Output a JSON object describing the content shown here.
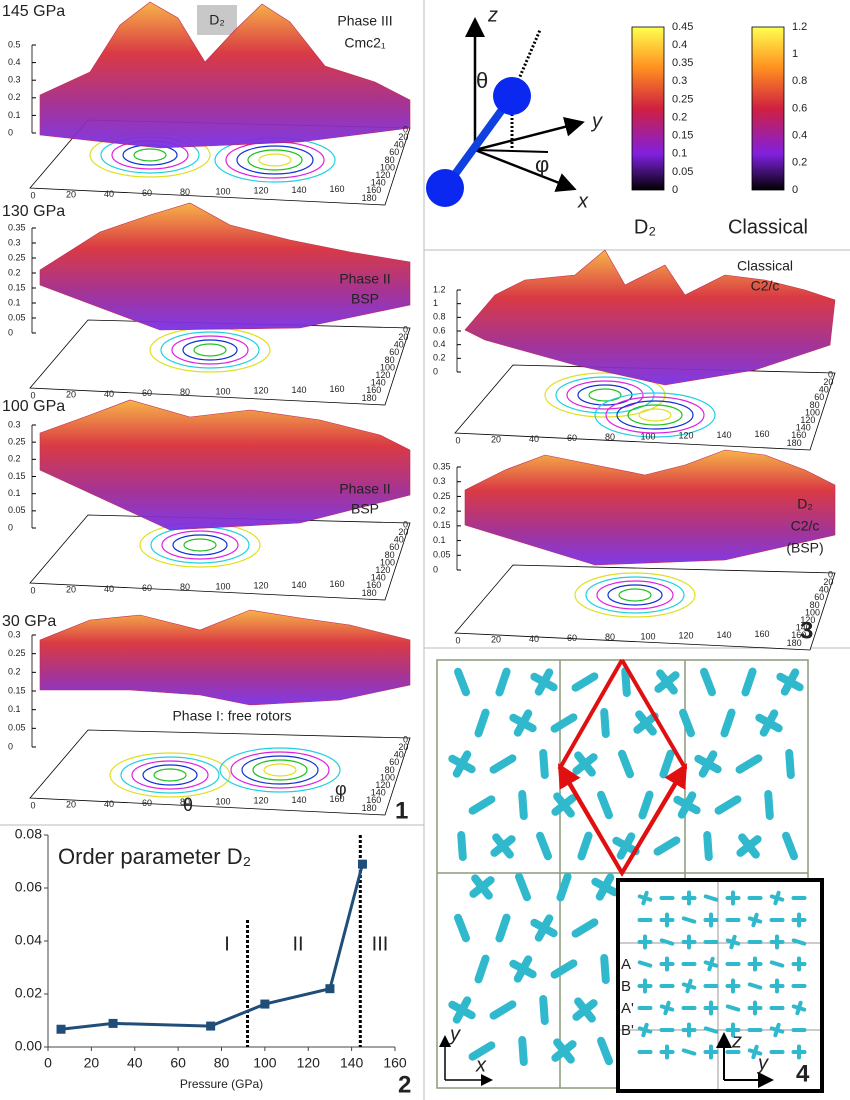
{
  "figure": {
    "panel_labels": [
      "1",
      "2",
      "3",
      "4"
    ],
    "species_box": "D₂",
    "angle_labels": [
      "θ",
      "φ"
    ],
    "theta_ticks": [
      "0",
      "20",
      "40",
      "60",
      "80",
      "100",
      "120",
      "140",
      "160"
    ],
    "phi_ticks": [
      "0",
      "20",
      "40",
      "60",
      "80",
      "100",
      "120",
      "140",
      "160",
      "180"
    ],
    "left_surfaces": [
      {
        "pressure": "145 GPa",
        "phase": [
          "Phase III",
          "Cmc2₁"
        ],
        "zticks": [
          "0.5",
          "0.4",
          "0.3",
          "0.2",
          "0.1",
          "0"
        ]
      },
      {
        "pressure": "130 GPa",
        "phase": [
          "Phase II",
          "BSP"
        ],
        "zticks": [
          "0.35",
          "0.3",
          "0.25",
          "0.2",
          "0.15",
          "0.1",
          "0.05",
          "0"
        ]
      },
      {
        "pressure": "100 GPa",
        "phase": [
          "Phase II",
          "BSP"
        ],
        "zticks": [
          "0.3",
          "0.25",
          "0.2",
          "0.15",
          "0.1",
          "0.05",
          "0"
        ]
      },
      {
        "pressure": "30 GPa",
        "phase": [
          "Phase I: free rotors"
        ],
        "zticks": [
          "0.3",
          "0.25",
          "0.2",
          "0.15",
          "0.1",
          "0.05",
          "0"
        ]
      }
    ],
    "orientation_axes": {
      "z": "z",
      "y": "y",
      "x": "x",
      "theta": "θ",
      "phi": "φ"
    },
    "colorbars": [
      {
        "name": "D₂",
        "ticks": [
          "0.45",
          "0.4",
          "0.35",
          "0.3",
          "0.25",
          "0.2",
          "0.15",
          "0.1",
          "0.05",
          "0"
        ]
      },
      {
        "name": "Classical",
        "ticks": [
          "1.2",
          "1",
          "0.8",
          "0.6",
          "0.4",
          "0.2",
          "0"
        ]
      }
    ],
    "right_surfaces": [
      {
        "phase": [
          "Classical",
          "C2/c"
        ],
        "zticks": [
          "1.2",
          "1",
          "0.8",
          "0.6",
          "0.4",
          "0.2",
          "0"
        ]
      },
      {
        "phase": [
          "D₂",
          "C2/c",
          "(BSP)"
        ],
        "zticks": [
          "0.35",
          "0.3",
          "0.25",
          "0.2",
          "0.15",
          "0.1",
          "0.05",
          "0"
        ]
      }
    ],
    "lattice": {
      "axes": [
        "y",
        "x"
      ],
      "inset_axes": [
        "z",
        "y"
      ],
      "layers": [
        "A",
        "B",
        "A'",
        "B'"
      ]
    }
  },
  "chart_data": {
    "type": "line",
    "title": "Order parameter D₂",
    "xlabel": "Pressure (GPa)",
    "x": [
      6,
      30,
      75,
      100,
      130,
      145
    ],
    "values": [
      0.0067,
      0.0089,
      0.0079,
      0.0162,
      0.022,
      0.069
    ],
    "color": "#1f4e79",
    "xlim": [
      0,
      160
    ],
    "xticks": [
      0,
      20,
      40,
      60,
      80,
      100,
      120,
      140,
      160
    ],
    "ylim": [
      0,
      0.08
    ],
    "yticks": [
      {
        "value": 0,
        "label": "0.00"
      },
      {
        "value": 0.02,
        "label": "0.02"
      },
      {
        "value": 0.04,
        "label": "0.04"
      },
      {
        "value": 0.06,
        "label": "0.06"
      },
      {
        "value": 0.08,
        "label": "0.08"
      }
    ],
    "boundaries": [
      92,
      144
    ],
    "regions": [
      "I",
      "II",
      "III"
    ]
  }
}
